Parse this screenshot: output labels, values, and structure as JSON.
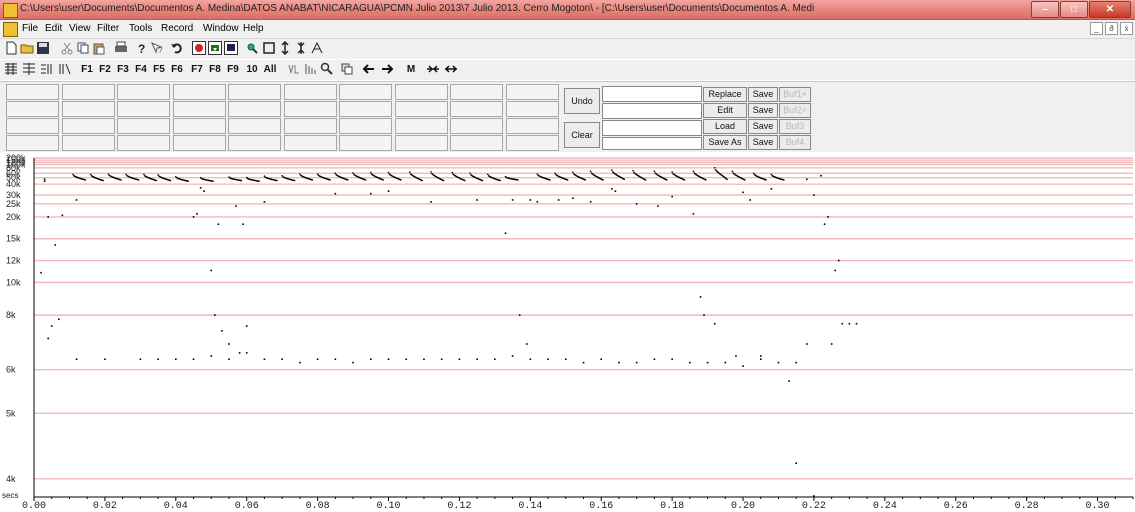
{
  "window": {
    "title": "C:\\Users\\user\\Documents\\Documentos A. Medina\\DATOS ANABAT\\NICARAGUA\\PCMN Julio 2013\\7 Julio 2013. Cerro Mogoton\\ - [C:\\Users\\user\\Documents\\Documentos A. Medi",
    "minimize": "–",
    "maximize": "□",
    "close": "✕"
  },
  "menu": {
    "items": [
      "File",
      "Edit",
      "View",
      "Filter",
      "Tools",
      "Record",
      "Window",
      "Help"
    ],
    "mdi": [
      "_",
      "ð",
      "x"
    ]
  },
  "toolbar2": {
    "buttons": [
      "F1",
      "F2",
      "F3",
      "F4",
      "F5",
      "F6",
      "F7",
      "F8",
      "F9",
      "10",
      "All"
    ],
    "extra": [
      "M"
    ]
  },
  "panel": {
    "undo": "Undo",
    "clear": "Clear",
    "rows": [
      {
        "action": "Replace",
        "save": "Save",
        "buf": "Buf1+"
      },
      {
        "action": "Edit",
        "save": "Save",
        "buf": "Buf2+"
      },
      {
        "action": "Load",
        "save": "Save",
        "buf": "Buf3"
      },
      {
        "action": "Save As",
        "save": "Save",
        "buf": "Buf4"
      }
    ]
  },
  "chart_data": {
    "type": "scatter",
    "x_unit_label": "secs",
    "x_ticks": [
      "0.00",
      "0.02",
      "0.04",
      "0.06",
      "0.08",
      "0.10",
      "0.12",
      "0.14",
      "0.16",
      "0.18",
      "0.20",
      "0.22",
      "0.24",
      "0.26",
      "0.28",
      "0.30"
    ],
    "y_ticks": [
      "200k",
      "150k",
      "120k",
      "100k",
      "80k",
      "60k",
      "50k",
      "40k",
      "30k",
      "25k",
      "20k",
      "15k",
      "12k",
      "10k",
      "8k",
      "6k",
      "5k",
      "4k"
    ],
    "xlim": [
      0.0,
      0.31
    ],
    "y_scale": "hyperbolic",
    "grid": true,
    "colors": {
      "grid": "#f4b8b8",
      "points": "#000000",
      "background": "#ffffff"
    },
    "pulses": [
      {
        "x": 0.011,
        "top": 57,
        "bottom": 46
      },
      {
        "x": 0.016,
        "top": 57,
        "bottom": 45
      },
      {
        "x": 0.021,
        "top": 58,
        "bottom": 46
      },
      {
        "x": 0.026,
        "top": 57,
        "bottom": 46
      },
      {
        "x": 0.031,
        "top": 57,
        "bottom": 45
      },
      {
        "x": 0.035,
        "top": 56,
        "bottom": 45
      },
      {
        "x": 0.04,
        "top": 52,
        "bottom": 44
      },
      {
        "x": 0.047,
        "top": 50,
        "bottom": 44
      },
      {
        "x": 0.055,
        "top": 51,
        "bottom": 45
      },
      {
        "x": 0.06,
        "top": 50,
        "bottom": 44
      },
      {
        "x": 0.065,
        "top": 53,
        "bottom": 45
      },
      {
        "x": 0.07,
        "top": 54,
        "bottom": 45
      },
      {
        "x": 0.075,
        "top": 58,
        "bottom": 46
      },
      {
        "x": 0.08,
        "top": 58,
        "bottom": 46
      },
      {
        "x": 0.085,
        "top": 60,
        "bottom": 46
      },
      {
        "x": 0.09,
        "top": 61,
        "bottom": 46
      },
      {
        "x": 0.095,
        "top": 62,
        "bottom": 46
      },
      {
        "x": 0.1,
        "top": 62,
        "bottom": 46
      },
      {
        "x": 0.106,
        "top": 63,
        "bottom": 45
      },
      {
        "x": 0.112,
        "top": 64,
        "bottom": 45
      },
      {
        "x": 0.118,
        "top": 62,
        "bottom": 45
      },
      {
        "x": 0.123,
        "top": 60,
        "bottom": 45
      },
      {
        "x": 0.128,
        "top": 57,
        "bottom": 45
      },
      {
        "x": 0.133,
        "top": 52,
        "bottom": 46
      },
      {
        "x": 0.142,
        "top": 58,
        "bottom": 46
      },
      {
        "x": 0.147,
        "top": 60,
        "bottom": 46
      },
      {
        "x": 0.152,
        "top": 63,
        "bottom": 46
      },
      {
        "x": 0.157,
        "top": 66,
        "bottom": 46
      },
      {
        "x": 0.163,
        "top": 70,
        "bottom": 47
      },
      {
        "x": 0.169,
        "top": 68,
        "bottom": 46
      },
      {
        "x": 0.175,
        "top": 66,
        "bottom": 46
      },
      {
        "x": 0.18,
        "top": 64,
        "bottom": 46
      },
      {
        "x": 0.186,
        "top": 66,
        "bottom": 46
      },
      {
        "x": 0.192,
        "top": 80,
        "bottom": 47
      },
      {
        "x": 0.197,
        "top": 66,
        "bottom": 46
      },
      {
        "x": 0.203,
        "top": 60,
        "bottom": 46
      },
      {
        "x": 0.208,
        "top": 57,
        "bottom": 46
      }
    ],
    "dots": [
      [
        0.003,
        47
      ],
      [
        0.003,
        44
      ],
      [
        0.004,
        20
      ],
      [
        0.005,
        7.5
      ],
      [
        0.006,
        14
      ],
      [
        0.007,
        7.8
      ],
      [
        0.008,
        20.5
      ],
      [
        0.012,
        27
      ],
      [
        0.002,
        10.8
      ],
      [
        0.004,
        7
      ],
      [
        0.012,
        6.3
      ],
      [
        0.02,
        6.3
      ],
      [
        0.03,
        6.3
      ],
      [
        0.035,
        6.3
      ],
      [
        0.04,
        6.3
      ],
      [
        0.045,
        6.3
      ],
      [
        0.05,
        6.4
      ],
      [
        0.055,
        6.3
      ],
      [
        0.06,
        6.5
      ],
      [
        0.065,
        6.3
      ],
      [
        0.07,
        6.3
      ],
      [
        0.075,
        6.2
      ],
      [
        0.08,
        6.3
      ],
      [
        0.085,
        6.3
      ],
      [
        0.09,
        6.2
      ],
      [
        0.095,
        6.3
      ],
      [
        0.1,
        6.3
      ],
      [
        0.105,
        6.3
      ],
      [
        0.11,
        6.3
      ],
      [
        0.115,
        6.3
      ],
      [
        0.12,
        6.3
      ],
      [
        0.125,
        6.3
      ],
      [
        0.13,
        6.3
      ],
      [
        0.135,
        6.4
      ],
      [
        0.14,
        6.3
      ],
      [
        0.145,
        6.3
      ],
      [
        0.15,
        6.3
      ],
      [
        0.155,
        6.2
      ],
      [
        0.16,
        6.3
      ],
      [
        0.165,
        6.2
      ],
      [
        0.17,
        6.2
      ],
      [
        0.175,
        6.3
      ],
      [
        0.18,
        6.3
      ],
      [
        0.185,
        6.2
      ],
      [
        0.19,
        6.2
      ],
      [
        0.195,
        6.2
      ],
      [
        0.2,
        6.1
      ],
      [
        0.205,
        6.3
      ],
      [
        0.21,
        6.2
      ],
      [
        0.215,
        6.2
      ],
      [
        0.045,
        20
      ],
      [
        0.046,
        21
      ],
      [
        0.047,
        36
      ],
      [
        0.048,
        33
      ],
      [
        0.05,
        11
      ],
      [
        0.051,
        8
      ],
      [
        0.052,
        18
      ],
      [
        0.053,
        7.3
      ],
      [
        0.055,
        6.8
      ],
      [
        0.057,
        24
      ],
      [
        0.058,
        6.5
      ],
      [
        0.059,
        18
      ],
      [
        0.06,
        7.5
      ],
      [
        0.065,
        26
      ],
      [
        0.085,
        31
      ],
      [
        0.095,
        31
      ],
      [
        0.1,
        33
      ],
      [
        0.112,
        26
      ],
      [
        0.125,
        27
      ],
      [
        0.133,
        16
      ],
      [
        0.135,
        27
      ],
      [
        0.137,
        8
      ],
      [
        0.139,
        6.8
      ],
      [
        0.14,
        27
      ],
      [
        0.142,
        26
      ],
      [
        0.148,
        27
      ],
      [
        0.152,
        28
      ],
      [
        0.157,
        26
      ],
      [
        0.163,
        35
      ],
      [
        0.164,
        33
      ],
      [
        0.17,
        25
      ],
      [
        0.176,
        24
      ],
      [
        0.18,
        29
      ],
      [
        0.186,
        21
      ],
      [
        0.188,
        9
      ],
      [
        0.189,
        8
      ],
      [
        0.192,
        7.6
      ],
      [
        0.198,
        6.4
      ],
      [
        0.2,
        32
      ],
      [
        0.202,
        27
      ],
      [
        0.205,
        6.4
      ],
      [
        0.208,
        35
      ],
      [
        0.213,
        5.7
      ],
      [
        0.218,
        47
      ],
      [
        0.22,
        30
      ],
      [
        0.222,
        54
      ],
      [
        0.223,
        18
      ],
      [
        0.224,
        20
      ],
      [
        0.226,
        11
      ],
      [
        0.227,
        12
      ],
      [
        0.228,
        7.6
      ],
      [
        0.23,
        7.6
      ],
      [
        0.232,
        7.6
      ],
      [
        0.215,
        4.2
      ],
      [
        0.22,
        3.8
      ],
      [
        0.225,
        6.8
      ],
      [
        0.218,
        6.8
      ]
    ]
  }
}
